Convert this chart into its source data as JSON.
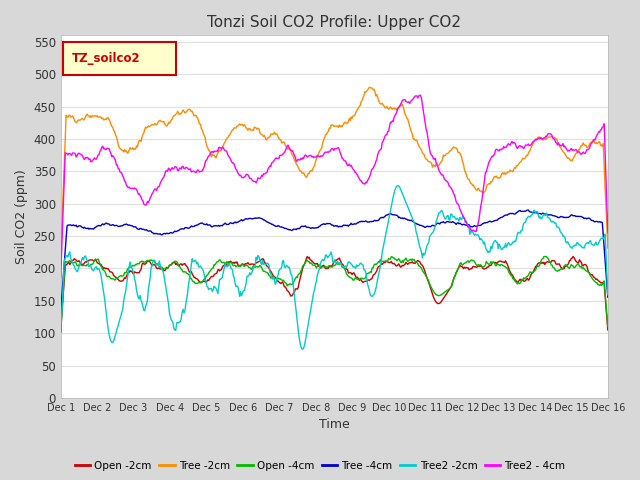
{
  "title": "Tonzi Soil CO2 Profile: Upper CO2",
  "xlabel": "Time",
  "ylabel": "Soil CO2 (ppm)",
  "ylim": [
    0,
    560
  ],
  "yticks": [
    0,
    50,
    100,
    150,
    200,
    250,
    300,
    350,
    400,
    450,
    500,
    550
  ],
  "xticklabels": [
    "Dec 1",
    "Dec 2",
    "Dec 3",
    "Dec 4",
    "Dec 5",
    "Dec 6",
    "Dec 7",
    "Dec 8",
    "Dec 9",
    "Dec 10",
    "Dec 11",
    "Dec 12",
    "Dec 13",
    "Dec 14",
    "Dec 15",
    "Dec 16"
  ],
  "legend_label": "TZ_soilco2",
  "colors": {
    "open2cm": "#cc0000",
    "tree2cm": "#ff8c00",
    "open4cm": "#00bb00",
    "tree4cm": "#0000cc",
    "tree2_2cm": "#00cccc",
    "tree2_4cm": "#ff00ff"
  },
  "fig_bg": "#d8d8d8",
  "plot_bg": "#ffffff",
  "grid_color": "#e0e0e0",
  "title_fontsize": 11,
  "legend_box_color": "#ffffcc",
  "legend_box_edge": "#cc0000"
}
